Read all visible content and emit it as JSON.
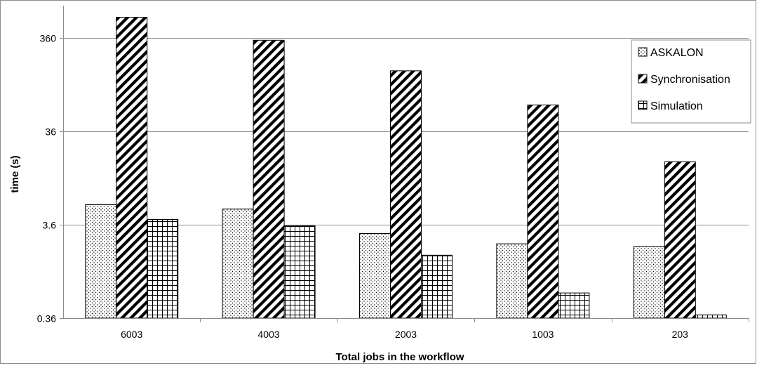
{
  "chart_data": {
    "type": "bar",
    "title": "",
    "xlabel": "Total jobs in the workflow",
    "ylabel": "time (s)",
    "y_scale": "log",
    "ylim": [
      0.36,
      800
    ],
    "y_ticks": [
      0.36,
      3.6,
      36,
      360
    ],
    "y_tick_labels": [
      "0.36",
      "3.6",
      "36",
      "360"
    ],
    "grid": true,
    "legend_position": "top-right",
    "categories": [
      "6003",
      "4003",
      "2003",
      "1003",
      "203"
    ],
    "series": [
      {
        "name": "ASKALON",
        "pattern": "dots",
        "values": [
          5.9,
          5.3,
          2.9,
          2.25,
          2.1
        ]
      },
      {
        "name": "Synchronisation",
        "pattern": "diagonal-stripes",
        "values": [
          600,
          340,
          160,
          69,
          17
        ]
      },
      {
        "name": "Simulation",
        "pattern": "grid",
        "values": [
          4.1,
          3.5,
          1.7,
          0.67,
          0.39
        ]
      }
    ]
  }
}
